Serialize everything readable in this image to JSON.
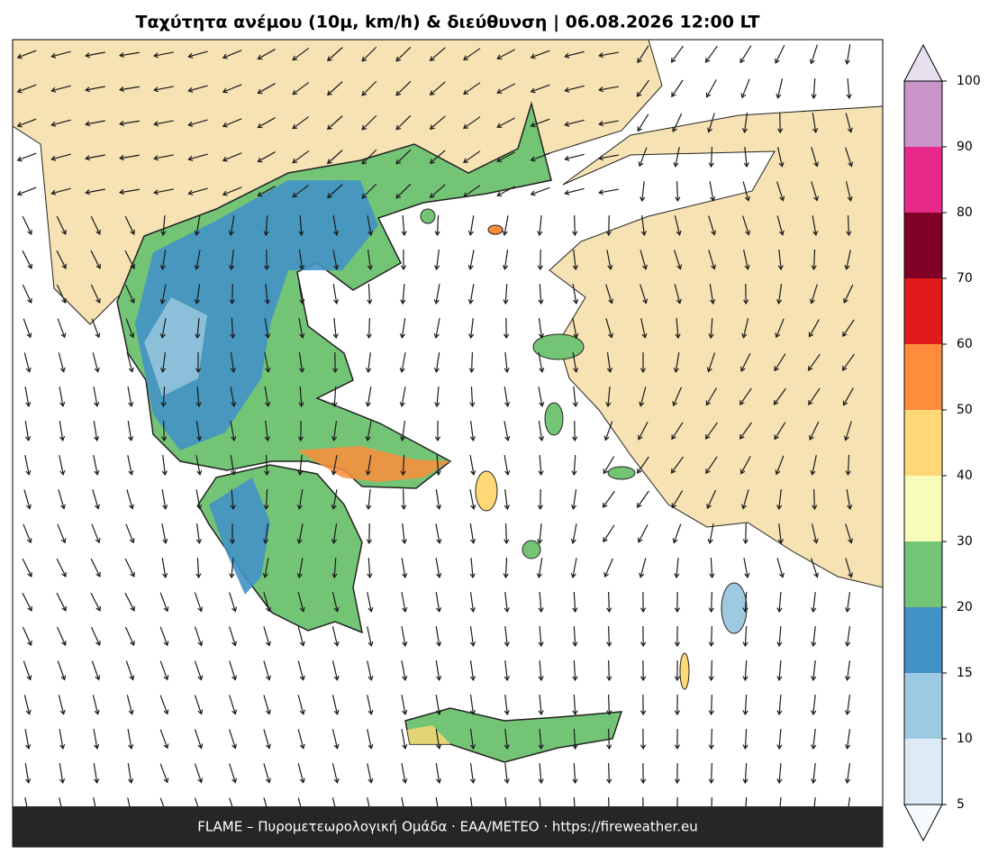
{
  "title": "Ταχύτητα ανέμου (10μ, km/h) & διεύθυνση  |  06.08.2026 12:00 LT",
  "footer": "FLAME – Πυρομετεωρολογική Ομάδα · ΕΑΑ/METEO · https://fireweather.eu",
  "colorbar": {
    "ticks": [
      5,
      10,
      15,
      20,
      30,
      40,
      50,
      60,
      70,
      80,
      90,
      100
    ],
    "colors": [
      "#deebf7",
      "#9ecae1",
      "#4292c6",
      "#74c476",
      "#f7fcb9",
      "#fed976",
      "#fd8d3c",
      "#e31a1c",
      "#800026",
      "#e7298a",
      "#c994c7"
    ],
    "under_color": "#f7fbff",
    "over_color": "#e7e1ef"
  }
}
